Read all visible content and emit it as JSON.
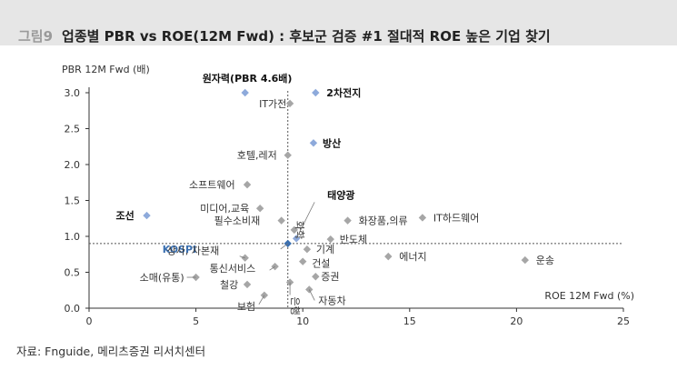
{
  "figure": {
    "number": "그림9",
    "title": "업종별 PBR vs ROE(12M Fwd) : 후보군 검증 #1 절대적 ROE 높은 기업 찾기",
    "source": "자료: Fnguide, 메리츠증권 리서치센터"
  },
  "colors": {
    "gray": "#a6a6a6",
    "blue": "#8eaadb",
    "kospi": "#3a6fb0",
    "refline": "#555555"
  },
  "chart_data": {
    "type": "scatter",
    "xlabel": "ROE 12M Fwd (%)",
    "ylabel": "PBR 12M Fwd (배)",
    "xlim": [
      0,
      25
    ],
    "ylim": [
      0,
      3.0
    ],
    "xticks": [
      "0",
      "5",
      "10",
      "15",
      "20",
      "25"
    ],
    "yticks": [
      "0.0",
      "0.5",
      "1.0",
      "1.5",
      "2.0",
      "2.5",
      "3.0"
    ],
    "reference_lines": {
      "kospi_roe": 9.3,
      "kospi_pbr": 0.9
    },
    "points": [
      {
        "label": "원자력(PBR 4.6배)",
        "x": 7.3,
        "y": 3.0,
        "highlight": true,
        "bold": true
      },
      {
        "label": "2차전지",
        "x": 10.6,
        "y": 3.0,
        "highlight": true,
        "bold": true
      },
      {
        "label": "IT가전",
        "x": 9.4,
        "y": 2.85,
        "highlight": false,
        "bold": false
      },
      {
        "label": "방산",
        "x": 10.5,
        "y": 2.3,
        "highlight": true,
        "bold": true
      },
      {
        "label": "호텔,레저",
        "x": 9.3,
        "y": 2.13,
        "highlight": false,
        "bold": false
      },
      {
        "label": "소프트웨어",
        "x": 7.4,
        "y": 1.72,
        "highlight": false,
        "bold": false
      },
      {
        "label": "미디어,교육",
        "x": 8.0,
        "y": 1.39,
        "highlight": false,
        "bold": false
      },
      {
        "label": "조선",
        "x": 2.7,
        "y": 1.29,
        "highlight": true,
        "bold": true
      },
      {
        "label": "필수소비재",
        "x": 9.0,
        "y": 1.22,
        "highlight": false,
        "bold": false
      },
      {
        "label": "화학",
        "x": 9.6,
        "y": 1.09,
        "highlight": false,
        "bold": false
      },
      {
        "label": "태양광",
        "x": 9.7,
        "y": 0.97,
        "highlight": true,
        "bold": true
      },
      {
        "label": "화장품,의류",
        "x": 12.1,
        "y": 1.22,
        "highlight": false,
        "bold": false
      },
      {
        "label": "IT하드웨어",
        "x": 15.6,
        "y": 1.26,
        "highlight": false,
        "bold": false
      },
      {
        "label": "반도체",
        "x": 11.3,
        "y": 0.96,
        "highlight": false,
        "bold": false
      },
      {
        "label": "KOSPI",
        "x": 9.3,
        "y": 0.9,
        "highlight": false,
        "bold": false,
        "kospi": true
      },
      {
        "label": "기계",
        "x": 10.2,
        "y": 0.82,
        "highlight": false,
        "bold": false
      },
      {
        "label": "건설",
        "x": 10.0,
        "y": 0.65,
        "highlight": false,
        "bold": false
      },
      {
        "label": "에너지",
        "x": 14.0,
        "y": 0.72,
        "highlight": false,
        "bold": false
      },
      {
        "label": "운송",
        "x": 20.4,
        "y": 0.67,
        "highlight": false,
        "bold": false
      },
      {
        "label": "상사, 자본재",
        "x": 7.3,
        "y": 0.7,
        "highlight": false,
        "bold": false
      },
      {
        "label": "통신서비스",
        "x": 8.7,
        "y": 0.58,
        "highlight": false,
        "bold": false
      },
      {
        "label": "증권",
        "x": 10.6,
        "y": 0.44,
        "highlight": false,
        "bold": false
      },
      {
        "label": "소매(유통)",
        "x": 5.0,
        "y": 0.43,
        "highlight": false,
        "bold": false
      },
      {
        "label": "철강",
        "x": 7.4,
        "y": 0.33,
        "highlight": false,
        "bold": false
      },
      {
        "label": "은행",
        "x": 9.4,
        "y": 0.36,
        "highlight": false,
        "bold": false
      },
      {
        "label": "자동차",
        "x": 10.3,
        "y": 0.26,
        "highlight": false,
        "bold": false
      },
      {
        "label": "보험",
        "x": 8.2,
        "y": 0.18,
        "highlight": false,
        "bold": false
      }
    ]
  }
}
